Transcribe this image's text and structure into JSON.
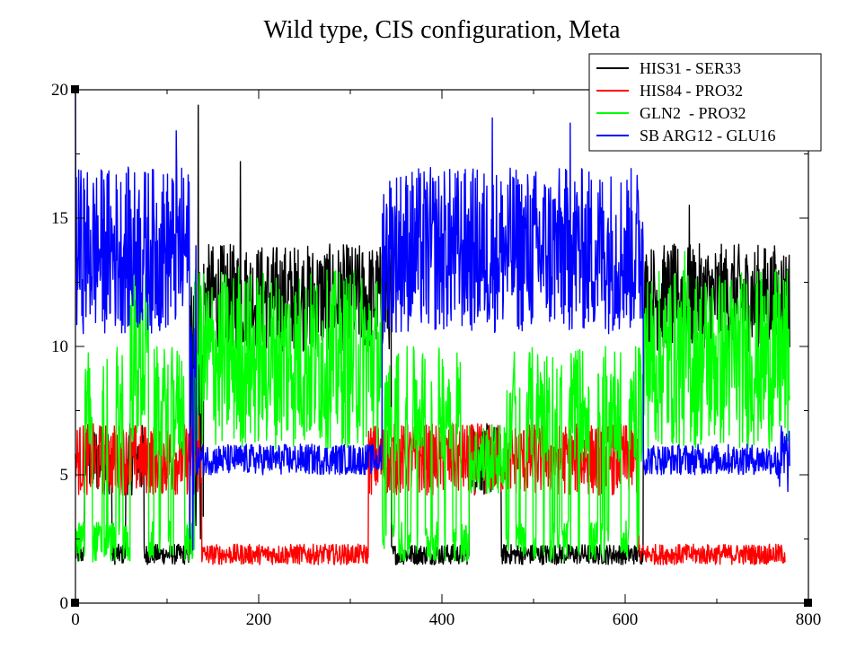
{
  "chart_data": {
    "type": "line",
    "title": "Wild type, CIS configuration, Meta",
    "xlabel": "",
    "ylabel": "",
    "xlim": [
      0,
      800
    ],
    "ylim": [
      0,
      20
    ],
    "x_ticks": [
      0,
      200,
      400,
      600,
      800
    ],
    "y_ticks": [
      0,
      5,
      10,
      15,
      20
    ],
    "x_tick_labels": [
      "0",
      "200",
      "400",
      "600",
      "800"
    ],
    "y_tick_labels": [
      "0",
      "5",
      "10",
      "15",
      "20"
    ],
    "grid": false,
    "legend_position": "top-right",
    "series": [
      {
        "name": "HIS31 - SER33",
        "color": "#000000",
        "segments": [
          {
            "x0": 0,
            "x1": 10,
            "mode": "low"
          },
          {
            "x0": 10,
            "x1": 40,
            "mode": "mid"
          },
          {
            "x0": 40,
            "x1": 55,
            "mode": "low"
          },
          {
            "x0": 55,
            "x1": 75,
            "mode": "mid"
          },
          {
            "x0": 75,
            "x1": 125,
            "mode": "low"
          },
          {
            "x0": 125,
            "x1": 140,
            "mode": "transit"
          },
          {
            "x0": 140,
            "x1": 345,
            "mode": "high"
          },
          {
            "x0": 345,
            "x1": 430,
            "mode": "low"
          },
          {
            "x0": 430,
            "x1": 465,
            "mode": "mid"
          },
          {
            "x0": 465,
            "x1": 620,
            "mode": "low"
          },
          {
            "x0": 620,
            "x1": 780,
            "mode": "high"
          }
        ],
        "peaks": [
          {
            "x": 134,
            "y": 19.4
          },
          {
            "x": 180,
            "y": 17.2
          },
          {
            "x": 670,
            "y": 15.5
          }
        ]
      },
      {
        "name": "HIS84 - PRO32",
        "color": "#ff0000",
        "segments": [
          {
            "x0": 0,
            "x1": 138,
            "mode": "mid"
          },
          {
            "x0": 138,
            "x1": 320,
            "mode": "low"
          },
          {
            "x0": 320,
            "x1": 345,
            "mode": "mid"
          },
          {
            "x0": 345,
            "x1": 450,
            "mode": "mid"
          },
          {
            "x0": 450,
            "x1": 470,
            "mode": "mid"
          },
          {
            "x0": 470,
            "x1": 600,
            "mode": "mid"
          },
          {
            "x0": 600,
            "x1": 615,
            "mode": "mid"
          },
          {
            "x0": 615,
            "x1": 775,
            "mode": "low"
          }
        ],
        "peaks": [
          {
            "x": 135,
            "y": 7.3
          }
        ]
      },
      {
        "name": "GLN2  - PRO32",
        "color": "#00ff00",
        "segments": [
          {
            "x0": 0,
            "x1": 60,
            "mode": "switch"
          },
          {
            "x0": 60,
            "x1": 80,
            "mode": "midhigh"
          },
          {
            "x0": 80,
            "x1": 130,
            "mode": "switch"
          },
          {
            "x0": 130,
            "x1": 335,
            "mode": "midhigh"
          },
          {
            "x0": 335,
            "x1": 430,
            "mode": "switch"
          },
          {
            "x0": 430,
            "x1": 470,
            "mode": "mid"
          },
          {
            "x0": 470,
            "x1": 620,
            "mode": "switch"
          },
          {
            "x0": 620,
            "x1": 780,
            "mode": "midhigh"
          }
        ],
        "peaks": [
          {
            "x": 178,
            "y": 13.1
          },
          {
            "x": 665,
            "y": 13.7
          }
        ]
      },
      {
        "name": "SB ARG12 - GLU16",
        "color": "#0000ff",
        "segments": [
          {
            "x0": 0,
            "x1": 125,
            "mode": "top"
          },
          {
            "x0": 125,
            "x1": 132,
            "mode": "transit"
          },
          {
            "x0": 132,
            "x1": 335,
            "mode": "band55"
          },
          {
            "x0": 335,
            "x1": 620,
            "mode": "top"
          },
          {
            "x0": 620,
            "x1": 765,
            "mode": "band55"
          },
          {
            "x0": 765,
            "x1": 780,
            "mode": "mid"
          }
        ],
        "peaks": [
          {
            "x": 0,
            "y": 20.0
          },
          {
            "x": 455,
            "y": 18.9
          },
          {
            "x": 540,
            "y": 18.7
          },
          {
            "x": 110,
            "y": 18.4
          }
        ]
      }
    ]
  }
}
